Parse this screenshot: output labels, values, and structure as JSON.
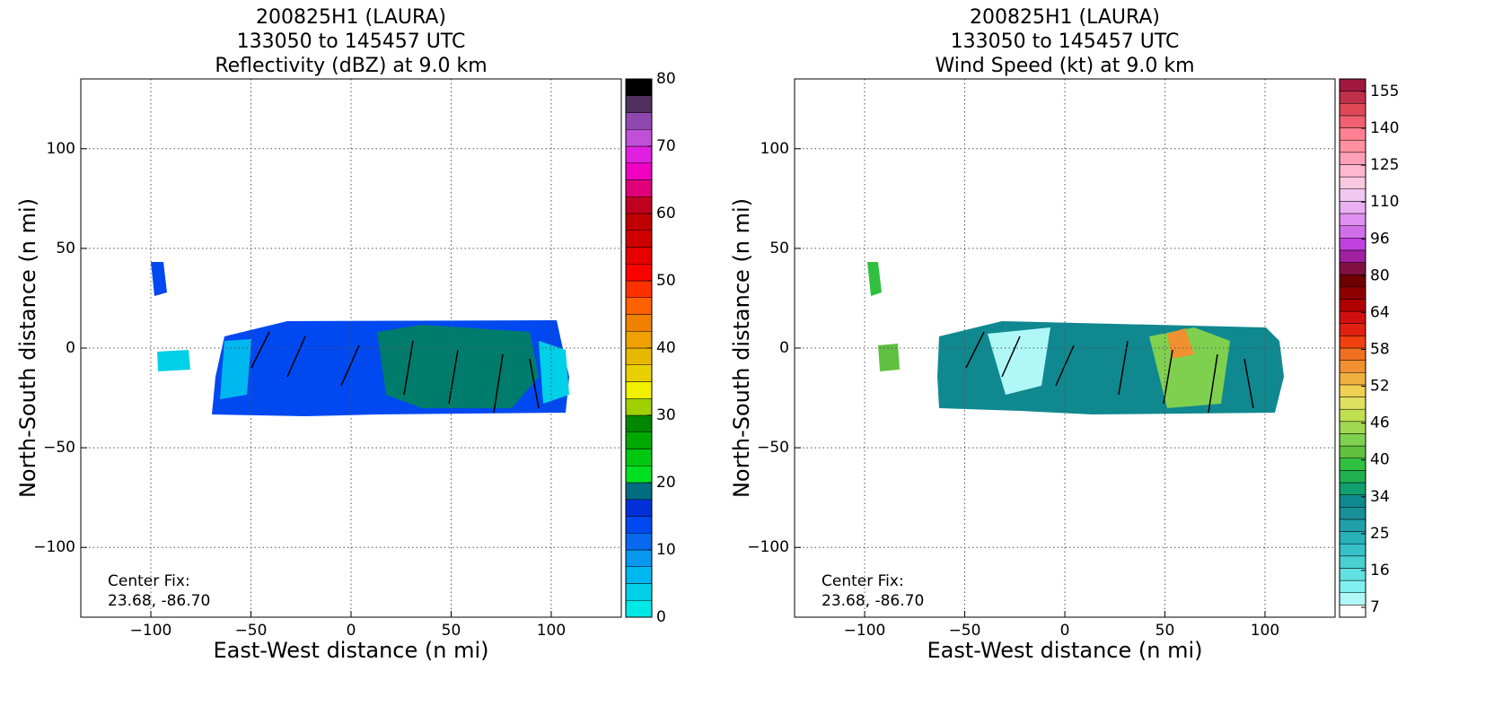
{
  "chart_data": [
    {
      "type": "heatmap",
      "title": [
        "200825H1 (LAURA)",
        "133050 to 145457 UTC",
        "Reflectivity (dBZ) at 9.0 km"
      ],
      "xlabel": "East-West distance (n mi)",
      "ylabel": "North-South distance (n mi)",
      "xlim": [
        -135,
        135
      ],
      "ylim": [
        -135,
        135
      ],
      "xticks": [
        {
          "value": -100,
          "label": "−100"
        },
        {
          "value": -50,
          "label": "−50"
        },
        0,
        50,
        100
      ],
      "yticks": [
        {
          "value": -100,
          "label": "−100"
        },
        {
          "value": -50,
          "label": "−50"
        },
        0,
        50,
        100
      ],
      "grid": true,
      "annotation": [
        "Center Fix:",
        "23.68, -86.70"
      ],
      "colorbar": {
        "scale": "linear",
        "lim": [
          0,
          80
        ],
        "ticks": [
          0,
          10,
          20,
          30,
          40,
          50,
          60,
          70,
          80
        ],
        "colors": [
          "#00e8e8",
          "#00d0e8",
          "#00b8f0",
          "#0898f0",
          "#0868f0",
          "#0048f0",
          "#0030d8",
          "#006e80",
          "#00e020",
          "#00c810",
          "#00a800",
          "#008800",
          "#a0d000",
          "#f0f000",
          "#e8d000",
          "#e8b800",
          "#f0a000",
          "#f08000",
          "#ff6000",
          "#ff3000",
          "#ff0000",
          "#e80000",
          "#d00000",
          "#c00000",
          "#c00020",
          "#e0007a",
          "#f000c0",
          "#e020e0",
          "#c050d8",
          "#9048b0",
          "#503060",
          "#000000"
        ]
      }
    },
    {
      "type": "heatmap",
      "title": [
        "200825H1 (LAURA)",
        "133050 to 145457 UTC",
        "Wind Speed (kt) at 9.0 km"
      ],
      "xlabel": "East-West distance (n mi)",
      "ylabel": "North-South distance (n mi)",
      "xlim": [
        -135,
        135
      ],
      "ylim": [
        -135,
        135
      ],
      "xticks": [
        {
          "value": -100,
          "label": "−100"
        },
        {
          "value": -50,
          "label": "−50"
        },
        0,
        50,
        100
      ],
      "yticks": [
        {
          "value": -100,
          "label": "−100"
        },
        {
          "value": -50,
          "label": "−50"
        },
        0,
        50,
        100
      ],
      "grid": true,
      "annotation": [
        "Center Fix:",
        "23.68, -86.70"
      ],
      "colorbar": {
        "scale": "categorical",
        "ticks": [
          7,
          16,
          25,
          34,
          40,
          46,
          52,
          58,
          64,
          80,
          96,
          110,
          125,
          140,
          155
        ],
        "colors": [
          "#ffffff",
          "#b0f8f8",
          "#80f0f0",
          "#60e0e0",
          "#48d0d0",
          "#38c0c8",
          "#28b0b8",
          "#20a0a8",
          "#189098",
          "#108890",
          "#10a070",
          "#20b050",
          "#30c040",
          "#60c040",
          "#80d050",
          "#a0d850",
          "#c0e050",
          "#e0e060",
          "#f0d050",
          "#f0b040",
          "#f09030",
          "#f07020",
          "#f04010",
          "#e02010",
          "#d01010",
          "#b00000",
          "#900000",
          "#700000",
          "#801040",
          "#a020a0",
          "#c040e0",
          "#d070e8",
          "#e090f0",
          "#e8b0f0",
          "#f0c8f0",
          "#f8c8e0",
          "#ffb8d0",
          "#ffa0b8",
          "#ff90a0",
          "#ff8090",
          "#f06070",
          "#e04858",
          "#c03048",
          "#a01840"
        ]
      }
    }
  ]
}
